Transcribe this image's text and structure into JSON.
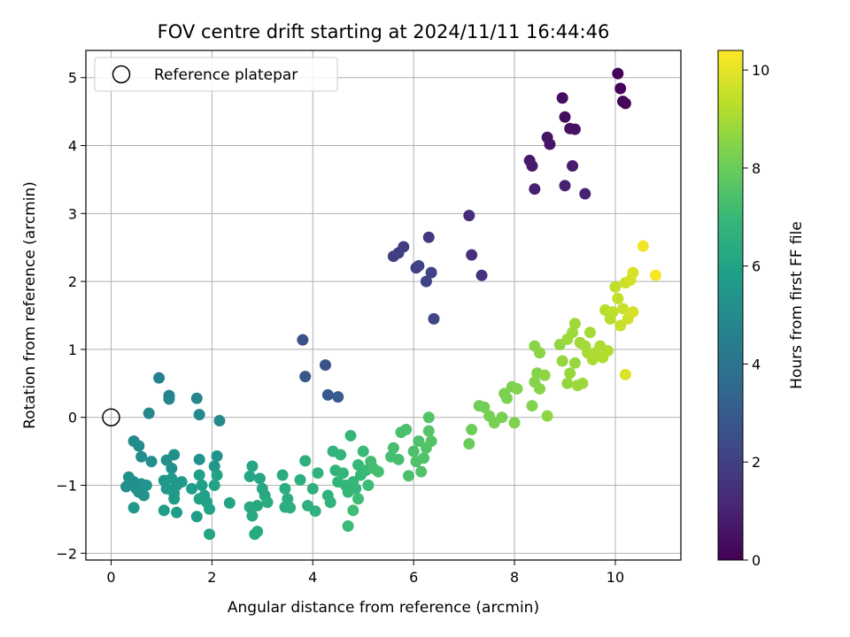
{
  "chart_data": {
    "type": "scatter",
    "title": "FOV centre drift starting at 2024/11/11 16:44:46",
    "xlabel": "Angular distance from reference (arcmin)",
    "ylabel": "Rotation from reference (arcmin)",
    "xlim": [
      -0.5,
      11.3
    ],
    "ylim": [
      -2.1,
      5.4
    ],
    "xticks": [
      0,
      2,
      4,
      6,
      8,
      10
    ],
    "yticks": [
      -2,
      -1,
      0,
      1,
      2,
      3,
      4,
      5
    ],
    "grid": true,
    "legend": {
      "position": "top-left",
      "entries": [
        {
          "label": "Reference platepar",
          "marker": "open-circle"
        }
      ]
    },
    "reference_point": {
      "x": 0,
      "y": 0
    },
    "colorbar": {
      "label": "Hours from first FF file",
      "range": [
        0,
        10.4
      ],
      "ticks": [
        0,
        2,
        4,
        6,
        8,
        10
      ],
      "colormap": "viridis",
      "stops": [
        "#440154",
        "#482878",
        "#3e4989",
        "#31688e",
        "#26828e",
        "#1f9e89",
        "#35b779",
        "#6ece58",
        "#b5de2b",
        "#fde725"
      ]
    },
    "points": [
      {
        "x": 10.05,
        "y": 5.06,
        "h": 0.05
      },
      {
        "x": 10.1,
        "y": 4.84,
        "h": 0.1
      },
      {
        "x": 10.15,
        "y": 4.65,
        "h": 0.15
      },
      {
        "x": 10.2,
        "y": 4.62,
        "h": 0.2
      },
      {
        "x": 8.95,
        "y": 4.7,
        "h": 0.35
      },
      {
        "x": 9.0,
        "y": 4.42,
        "h": 0.4
      },
      {
        "x": 9.1,
        "y": 4.25,
        "h": 0.45
      },
      {
        "x": 9.2,
        "y": 4.24,
        "h": 0.5
      },
      {
        "x": 8.65,
        "y": 4.12,
        "h": 0.55
      },
      {
        "x": 8.7,
        "y": 4.02,
        "h": 0.6
      },
      {
        "x": 8.3,
        "y": 3.78,
        "h": 0.7
      },
      {
        "x": 8.35,
        "y": 3.7,
        "h": 0.75
      },
      {
        "x": 9.15,
        "y": 3.7,
        "h": 0.8
      },
      {
        "x": 8.4,
        "y": 3.36,
        "h": 0.9
      },
      {
        "x": 9.0,
        "y": 3.41,
        "h": 0.95
      },
      {
        "x": 9.4,
        "y": 3.29,
        "h": 1.0
      },
      {
        "x": 7.1,
        "y": 2.97,
        "h": 1.3
      },
      {
        "x": 7.15,
        "y": 2.39,
        "h": 1.4
      },
      {
        "x": 7.35,
        "y": 2.09,
        "h": 1.5
      },
      {
        "x": 6.3,
        "y": 2.65,
        "h": 1.8
      },
      {
        "x": 5.8,
        "y": 2.51,
        "h": 1.85
      },
      {
        "x": 5.7,
        "y": 2.42,
        "h": 1.9
      },
      {
        "x": 5.6,
        "y": 2.37,
        "h": 1.95
      },
      {
        "x": 6.05,
        "y": 2.2,
        "h": 2.0
      },
      {
        "x": 6.1,
        "y": 2.23,
        "h": 2.05
      },
      {
        "x": 6.35,
        "y": 2.13,
        "h": 2.1
      },
      {
        "x": 6.25,
        "y": 2.0,
        "h": 2.15
      },
      {
        "x": 6.4,
        "y": 1.45,
        "h": 2.25
      },
      {
        "x": 3.8,
        "y": 1.14,
        "h": 2.6
      },
      {
        "x": 4.25,
        "y": 0.77,
        "h": 2.7
      },
      {
        "x": 3.85,
        "y": 0.6,
        "h": 2.8
      },
      {
        "x": 4.3,
        "y": 0.33,
        "h": 2.9
      },
      {
        "x": 4.5,
        "y": 0.3,
        "h": 3.0
      },
      {
        "x": 0.95,
        "y": 0.58,
        "h": 4.6
      },
      {
        "x": 1.15,
        "y": 0.32,
        "h": 4.7
      },
      {
        "x": 1.15,
        "y": 0.27,
        "h": 4.75
      },
      {
        "x": 1.7,
        "y": 0.28,
        "h": 4.8
      },
      {
        "x": 0.75,
        "y": 0.06,
        "h": 4.85
      },
      {
        "x": 1.75,
        "y": 0.04,
        "h": 4.9
      },
      {
        "x": 2.15,
        "y": -0.05,
        "h": 4.95
      },
      {
        "x": 0.45,
        "y": -0.35,
        "h": 5.0
      },
      {
        "x": 0.55,
        "y": -0.42,
        "h": 5.05
      },
      {
        "x": 0.6,
        "y": -0.58,
        "h": 5.1
      },
      {
        "x": 0.8,
        "y": -0.65,
        "h": 5.15
      },
      {
        "x": 1.1,
        "y": -0.63,
        "h": 5.2
      },
      {
        "x": 1.25,
        "y": -0.55,
        "h": 5.25
      },
      {
        "x": 1.2,
        "y": -0.75,
        "h": 5.3
      },
      {
        "x": 1.75,
        "y": -0.62,
        "h": 5.35
      },
      {
        "x": 2.1,
        "y": -0.57,
        "h": 5.4
      },
      {
        "x": 2.05,
        "y": -0.72,
        "h": 5.45
      },
      {
        "x": 0.35,
        "y": -0.88,
        "h": 5.2
      },
      {
        "x": 0.3,
        "y": -1.02,
        "h": 5.1
      },
      {
        "x": 0.45,
        "y": -0.95,
        "h": 5.15
      },
      {
        "x": 0.5,
        "y": -1.05,
        "h": 5.2
      },
      {
        "x": 0.6,
        "y": -0.98,
        "h": 5.25
      },
      {
        "x": 0.55,
        "y": -1.1,
        "h": 5.3
      },
      {
        "x": 0.65,
        "y": -1.15,
        "h": 5.35
      },
      {
        "x": 0.7,
        "y": -1.0,
        "h": 5.4
      },
      {
        "x": 0.45,
        "y": -1.33,
        "h": 5.45
      },
      {
        "x": 1.05,
        "y": -0.93,
        "h": 5.5
      },
      {
        "x": 1.1,
        "y": -1.05,
        "h": 5.55
      },
      {
        "x": 1.2,
        "y": -0.9,
        "h": 5.6
      },
      {
        "x": 1.3,
        "y": -1.0,
        "h": 5.6
      },
      {
        "x": 1.4,
        "y": -0.95,
        "h": 5.65
      },
      {
        "x": 1.25,
        "y": -1.12,
        "h": 5.7
      },
      {
        "x": 1.25,
        "y": -1.2,
        "h": 5.7
      },
      {
        "x": 1.05,
        "y": -1.37,
        "h": 5.75
      },
      {
        "x": 1.3,
        "y": -1.4,
        "h": 5.75
      },
      {
        "x": 1.7,
        "y": -1.46,
        "h": 5.8
      },
      {
        "x": 1.6,
        "y": -1.05,
        "h": 5.8
      },
      {
        "x": 1.75,
        "y": -0.85,
        "h": 5.85
      },
      {
        "x": 1.8,
        "y": -1.0,
        "h": 5.85
      },
      {
        "x": 1.85,
        "y": -1.15,
        "h": 5.9
      },
      {
        "x": 1.9,
        "y": -1.25,
        "h": 5.9
      },
      {
        "x": 1.95,
        "y": -1.35,
        "h": 5.95
      },
      {
        "x": 1.75,
        "y": -1.2,
        "h": 5.95
      },
      {
        "x": 2.05,
        "y": -1.0,
        "h": 6.0
      },
      {
        "x": 2.1,
        "y": -0.85,
        "h": 6.0
      },
      {
        "x": 2.35,
        "y": -1.26,
        "h": 6.05
      },
      {
        "x": 1.95,
        "y": -1.72,
        "h": 6.1
      },
      {
        "x": 2.8,
        "y": -0.72,
        "h": 6.1
      },
      {
        "x": 2.75,
        "y": -0.87,
        "h": 6.15
      },
      {
        "x": 2.95,
        "y": -0.9,
        "h": 6.2
      },
      {
        "x": 3.0,
        "y": -1.05,
        "h": 6.2
      },
      {
        "x": 3.05,
        "y": -1.15,
        "h": 6.25
      },
      {
        "x": 2.9,
        "y": -1.3,
        "h": 6.25
      },
      {
        "x": 2.75,
        "y": -1.32,
        "h": 6.3
      },
      {
        "x": 2.8,
        "y": -1.45,
        "h": 6.3
      },
      {
        "x": 2.85,
        "y": -1.72,
        "h": 6.35
      },
      {
        "x": 2.9,
        "y": -1.68,
        "h": 6.35
      },
      {
        "x": 3.1,
        "y": -1.25,
        "h": 6.4
      },
      {
        "x": 3.4,
        "y": -0.85,
        "h": 6.4
      },
      {
        "x": 3.45,
        "y": -1.05,
        "h": 6.45
      },
      {
        "x": 3.5,
        "y": -1.2,
        "h": 6.45
      },
      {
        "x": 3.45,
        "y": -1.32,
        "h": 6.5
      },
      {
        "x": 3.55,
        "y": -1.33,
        "h": 6.5
      },
      {
        "x": 3.75,
        "y": -0.92,
        "h": 6.55
      },
      {
        "x": 3.85,
        "y": -0.64,
        "h": 6.55
      },
      {
        "x": 3.9,
        "y": -1.3,
        "h": 6.6
      },
      {
        "x": 4.0,
        "y": -1.05,
        "h": 6.6
      },
      {
        "x": 4.05,
        "y": -1.38,
        "h": 6.65
      },
      {
        "x": 4.1,
        "y": -0.82,
        "h": 6.65
      },
      {
        "x": 4.3,
        "y": -1.15,
        "h": 6.7
      },
      {
        "x": 4.35,
        "y": -1.25,
        "h": 6.7
      },
      {
        "x": 4.4,
        "y": -0.5,
        "h": 6.75
      },
      {
        "x": 4.45,
        "y": -0.78,
        "h": 6.75
      },
      {
        "x": 4.5,
        "y": -0.95,
        "h": 6.8
      },
      {
        "x": 4.55,
        "y": -0.55,
        "h": 6.8
      },
      {
        "x": 4.6,
        "y": -0.82,
        "h": 6.85
      },
      {
        "x": 4.65,
        "y": -1.0,
        "h": 6.85
      },
      {
        "x": 4.7,
        "y": -1.1,
        "h": 6.9
      },
      {
        "x": 4.75,
        "y": -0.27,
        "h": 6.9
      },
      {
        "x": 4.8,
        "y": -0.95,
        "h": 6.95
      },
      {
        "x": 4.85,
        "y": -1.05,
        "h": 6.95
      },
      {
        "x": 4.9,
        "y": -0.7,
        "h": 7.0
      },
      {
        "x": 4.95,
        "y": -0.85,
        "h": 7.0
      },
      {
        "x": 5.0,
        "y": -0.5,
        "h": 7.05
      },
      {
        "x": 5.05,
        "y": -0.78,
        "h": 7.05
      },
      {
        "x": 5.1,
        "y": -1.0,
        "h": 7.1
      },
      {
        "x": 4.7,
        "y": -1.6,
        "h": 7.1
      },
      {
        "x": 4.8,
        "y": -1.37,
        "h": 7.15
      },
      {
        "x": 4.9,
        "y": -1.2,
        "h": 7.15
      },
      {
        "x": 5.15,
        "y": -0.65,
        "h": 7.2
      },
      {
        "x": 5.2,
        "y": -0.75,
        "h": 7.2
      },
      {
        "x": 5.3,
        "y": -0.8,
        "h": 7.25
      },
      {
        "x": 5.55,
        "y": -0.58,
        "h": 7.25
      },
      {
        "x": 5.6,
        "y": -0.45,
        "h": 7.3
      },
      {
        "x": 5.7,
        "y": -0.62,
        "h": 7.3
      },
      {
        "x": 5.75,
        "y": -0.22,
        "h": 7.35
      },
      {
        "x": 5.85,
        "y": -0.18,
        "h": 7.35
      },
      {
        "x": 5.9,
        "y": -0.86,
        "h": 7.4
      },
      {
        "x": 6.0,
        "y": -0.5,
        "h": 7.4
      },
      {
        "x": 6.05,
        "y": -0.65,
        "h": 7.45
      },
      {
        "x": 6.1,
        "y": -0.35,
        "h": 7.45
      },
      {
        "x": 6.15,
        "y": -0.8,
        "h": 7.5
      },
      {
        "x": 6.2,
        "y": -0.6,
        "h": 7.5
      },
      {
        "x": 6.25,
        "y": -0.45,
        "h": 7.55
      },
      {
        "x": 6.3,
        "y": 0.0,
        "h": 7.55
      },
      {
        "x": 6.3,
        "y": -0.2,
        "h": 7.6
      },
      {
        "x": 6.35,
        "y": -0.35,
        "h": 7.6
      },
      {
        "x": 7.1,
        "y": -0.39,
        "h": 8.0
      },
      {
        "x": 7.15,
        "y": -0.18,
        "h": 8.05
      },
      {
        "x": 7.3,
        "y": 0.17,
        "h": 8.1
      },
      {
        "x": 7.4,
        "y": 0.15,
        "h": 8.15
      },
      {
        "x": 7.5,
        "y": 0.02,
        "h": 8.2
      },
      {
        "x": 7.6,
        "y": -0.08,
        "h": 8.2
      },
      {
        "x": 7.75,
        "y": 0.0,
        "h": 8.25
      },
      {
        "x": 7.8,
        "y": 0.35,
        "h": 8.3
      },
      {
        "x": 7.85,
        "y": 0.28,
        "h": 8.3
      },
      {
        "x": 7.95,
        "y": 0.45,
        "h": 8.35
      },
      {
        "x": 8.0,
        "y": -0.08,
        "h": 8.35
      },
      {
        "x": 8.05,
        "y": 0.42,
        "h": 8.4
      },
      {
        "x": 8.35,
        "y": 0.17,
        "h": 8.4
      },
      {
        "x": 8.4,
        "y": 0.52,
        "h": 8.45
      },
      {
        "x": 8.45,
        "y": 0.65,
        "h": 8.45
      },
      {
        "x": 8.5,
        "y": 0.42,
        "h": 8.5
      },
      {
        "x": 8.4,
        "y": 1.05,
        "h": 8.5
      },
      {
        "x": 8.5,
        "y": 0.95,
        "h": 8.55
      },
      {
        "x": 8.6,
        "y": 0.62,
        "h": 8.6
      },
      {
        "x": 8.65,
        "y": 0.02,
        "h": 8.6
      },
      {
        "x": 8.9,
        "y": 1.07,
        "h": 8.65
      },
      {
        "x": 8.95,
        "y": 0.83,
        "h": 8.7
      },
      {
        "x": 9.05,
        "y": 0.5,
        "h": 8.7
      },
      {
        "x": 9.1,
        "y": 0.65,
        "h": 8.75
      },
      {
        "x": 9.2,
        "y": 0.8,
        "h": 8.75
      },
      {
        "x": 9.25,
        "y": 0.47,
        "h": 8.8
      },
      {
        "x": 9.35,
        "y": 0.5,
        "h": 8.8
      },
      {
        "x": 9.05,
        "y": 1.15,
        "h": 8.85
      },
      {
        "x": 9.15,
        "y": 1.25,
        "h": 8.85
      },
      {
        "x": 9.2,
        "y": 1.38,
        "h": 8.9
      },
      {
        "x": 9.3,
        "y": 1.1,
        "h": 8.9
      },
      {
        "x": 9.4,
        "y": 1.05,
        "h": 8.95
      },
      {
        "x": 9.45,
        "y": 0.95,
        "h": 9.0
      },
      {
        "x": 9.5,
        "y": 1.25,
        "h": 9.0
      },
      {
        "x": 9.55,
        "y": 0.85,
        "h": 9.05
      },
      {
        "x": 9.6,
        "y": 0.95,
        "h": 9.1
      },
      {
        "x": 9.7,
        "y": 1.05,
        "h": 9.1
      },
      {
        "x": 9.75,
        "y": 0.88,
        "h": 9.15
      },
      {
        "x": 9.85,
        "y": 0.98,
        "h": 9.2
      },
      {
        "x": 9.8,
        "y": 1.58,
        "h": 9.25
      },
      {
        "x": 9.9,
        "y": 1.45,
        "h": 9.3
      },
      {
        "x": 9.95,
        "y": 1.55,
        "h": 9.35
      },
      {
        "x": 10.0,
        "y": 1.92,
        "h": 9.4
      },
      {
        "x": 10.05,
        "y": 1.75,
        "h": 9.45
      },
      {
        "x": 10.1,
        "y": 1.35,
        "h": 9.5
      },
      {
        "x": 10.15,
        "y": 1.6,
        "h": 9.55
      },
      {
        "x": 10.2,
        "y": 1.98,
        "h": 9.6
      },
      {
        "x": 10.25,
        "y": 1.45,
        "h": 9.65
      },
      {
        "x": 10.3,
        "y": 2.02,
        "h": 9.7
      },
      {
        "x": 10.35,
        "y": 1.55,
        "h": 9.75
      },
      {
        "x": 10.35,
        "y": 2.13,
        "h": 9.8
      },
      {
        "x": 10.2,
        "y": 0.63,
        "h": 9.85
      },
      {
        "x": 10.55,
        "y": 2.52,
        "h": 10.2
      },
      {
        "x": 10.8,
        "y": 2.09,
        "h": 10.3
      }
    ]
  }
}
